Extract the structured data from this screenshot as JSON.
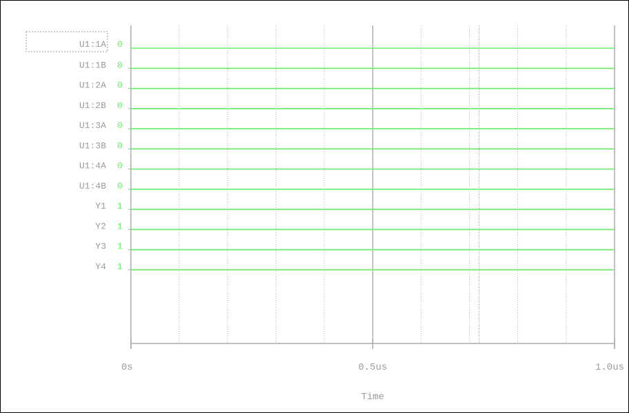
{
  "chart_data": {
    "type": "line",
    "xlabel": "Time",
    "x_unit": "us",
    "xlim": [
      0,
      1.0
    ],
    "x_ticks": [
      {
        "value": 0,
        "label": "0s"
      },
      {
        "value": 0.5,
        "label": "0.5us"
      },
      {
        "value": 1.0,
        "label": "1.0us"
      }
    ],
    "x_minor_ticks": [
      0.1,
      0.2,
      0.3,
      0.4,
      0.6,
      0.7,
      0.8,
      0.9
    ],
    "cursor_x": 0.72,
    "selected_signal": "U1:1A",
    "signal_color": "#66ee66",
    "series": [
      {
        "name": "U1:1A",
        "value": "0"
      },
      {
        "name": "U1:1B",
        "value": "0"
      },
      {
        "name": "U1:2A",
        "value": "0"
      },
      {
        "name": "U1:2B",
        "value": "0"
      },
      {
        "name": "U1:3A",
        "value": "0"
      },
      {
        "name": "U1:3B",
        "value": "0"
      },
      {
        "name": "U1:4A",
        "value": "0"
      },
      {
        "name": "U1:4B",
        "value": "0"
      },
      {
        "name": "Y1",
        "value": "1"
      },
      {
        "name": "Y2",
        "value": "1"
      },
      {
        "name": "Y3",
        "value": "1"
      },
      {
        "name": "Y4",
        "value": "1"
      }
    ]
  }
}
